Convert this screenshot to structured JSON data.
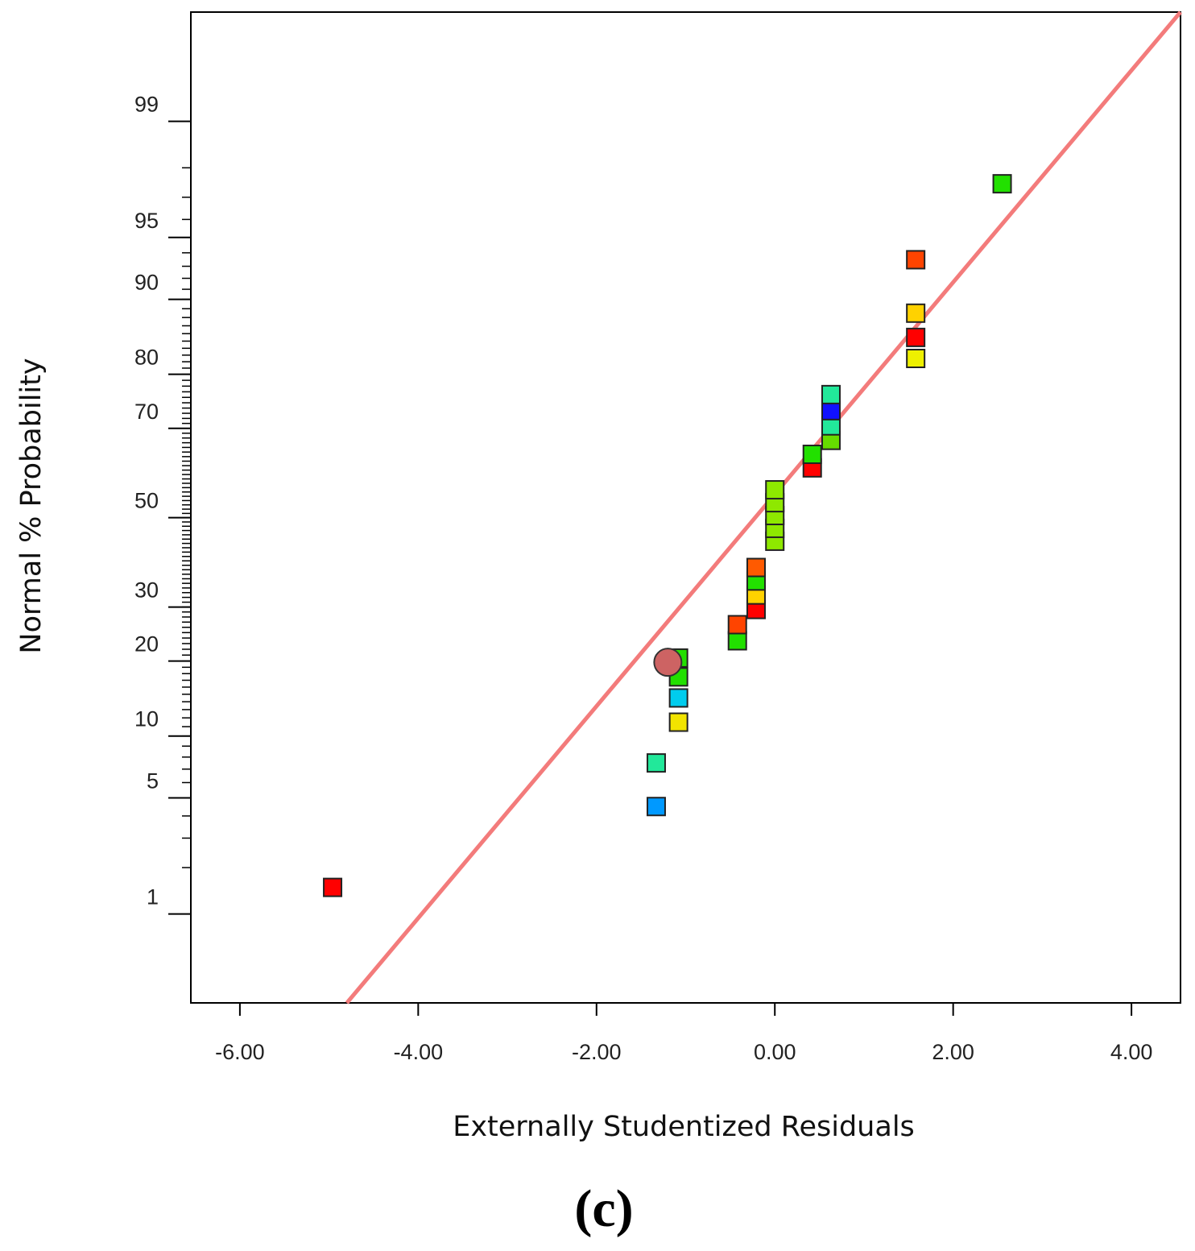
{
  "chart_data": {
    "type": "scatter",
    "subtype": "normal-probability-plot",
    "panel_label": "(c)",
    "xlabel": "Externally Studentized Residuals",
    "ylabel": "Normal % Probability",
    "xlim": [
      -6.55,
      4.55
    ],
    "x_ticks": [
      -6.0,
      -4.0,
      -2.0,
      0.0,
      2.0,
      4.0
    ],
    "x_tick_labels": [
      "-6.00",
      "-4.00",
      "-2.00",
      "0.00",
      "2.00",
      "4.00"
    ],
    "ylim_probability": [
      0.22,
      99.85
    ],
    "y_labeled_ticks": [
      1,
      5,
      10,
      20,
      30,
      50,
      70,
      80,
      90,
      95,
      99
    ],
    "y_tick_labels": [
      "1",
      "5",
      "10",
      "20",
      "30",
      "50",
      "70",
      "80",
      "90",
      "95",
      "99"
    ],
    "reference_line": {
      "color": "#f37b7b",
      "from": [
        -4.8,
        0.22
      ],
      "to": [
        4.55,
        99.85
      ]
    },
    "points": [
      {
        "x": -4.96,
        "y": 1.5,
        "color": "#ff0000",
        "shape": "square"
      },
      {
        "x": -1.33,
        "y": 4.5,
        "color": "#0099ff",
        "shape": "square"
      },
      {
        "x": -1.33,
        "y": 7.5,
        "color": "#22e89a",
        "shape": "square"
      },
      {
        "x": -1.08,
        "y": 11.5,
        "color": "#f2e400",
        "shape": "square"
      },
      {
        "x": -1.08,
        "y": 14.5,
        "color": "#00ccee",
        "shape": "square"
      },
      {
        "x": -1.08,
        "y": 17.5,
        "color": "#22e000",
        "shape": "square"
      },
      {
        "x": -1.08,
        "y": 20.5,
        "color": "#22e000",
        "shape": "square"
      },
      {
        "x": -1.2,
        "y": 19.8,
        "color": "#cd6363",
        "shape": "circle"
      },
      {
        "x": -0.42,
        "y": 23.5,
        "color": "#22e000",
        "shape": "square"
      },
      {
        "x": -0.42,
        "y": 26.5,
        "color": "#ff4400",
        "shape": "square"
      },
      {
        "x": -0.21,
        "y": 29.5,
        "color": "#ff0000",
        "shape": "square"
      },
      {
        "x": -0.21,
        "y": 32.5,
        "color": "#ffd200",
        "shape": "square"
      },
      {
        "x": -0.21,
        "y": 35.5,
        "color": "#22e000",
        "shape": "square"
      },
      {
        "x": -0.21,
        "y": 38.5,
        "color": "#ff5a00",
        "shape": "square"
      },
      {
        "x": 0.0,
        "y": 44.5,
        "color": "#8ee800",
        "shape": "square"
      },
      {
        "x": 0.0,
        "y": 47.5,
        "color": "#8ee800",
        "shape": "square"
      },
      {
        "x": 0.0,
        "y": 50.5,
        "color": "#8ee800",
        "shape": "square"
      },
      {
        "x": 0.0,
        "y": 53.5,
        "color": "#8ee800",
        "shape": "square"
      },
      {
        "x": 0.0,
        "y": 56.5,
        "color": "#8ee800",
        "shape": "square"
      },
      {
        "x": 0.42,
        "y": 61.5,
        "color": "#ff0000",
        "shape": "square"
      },
      {
        "x": 0.42,
        "y": 64.5,
        "color": "#22e000",
        "shape": "square"
      },
      {
        "x": 0.63,
        "y": 67.5,
        "color": "#66dd00",
        "shape": "square"
      },
      {
        "x": 0.63,
        "y": 70.5,
        "color": "#22e89a",
        "shape": "square"
      },
      {
        "x": 0.63,
        "y": 73.5,
        "color": "#1111ff",
        "shape": "square"
      },
      {
        "x": 0.63,
        "y": 76.5,
        "color": "#22e89a",
        "shape": "square"
      },
      {
        "x": 1.58,
        "y": 82.5,
        "color": "#eef000",
        "shape": "square"
      },
      {
        "x": 1.58,
        "y": 85.5,
        "color": "#ff0000",
        "shape": "square"
      },
      {
        "x": 1.58,
        "y": 88.5,
        "color": "#ffd200",
        "shape": "square"
      },
      {
        "x": 1.58,
        "y": 93.5,
        "color": "#ff4400",
        "shape": "square"
      },
      {
        "x": 2.55,
        "y": 97.5,
        "color": "#22e000",
        "shape": "square"
      }
    ]
  }
}
